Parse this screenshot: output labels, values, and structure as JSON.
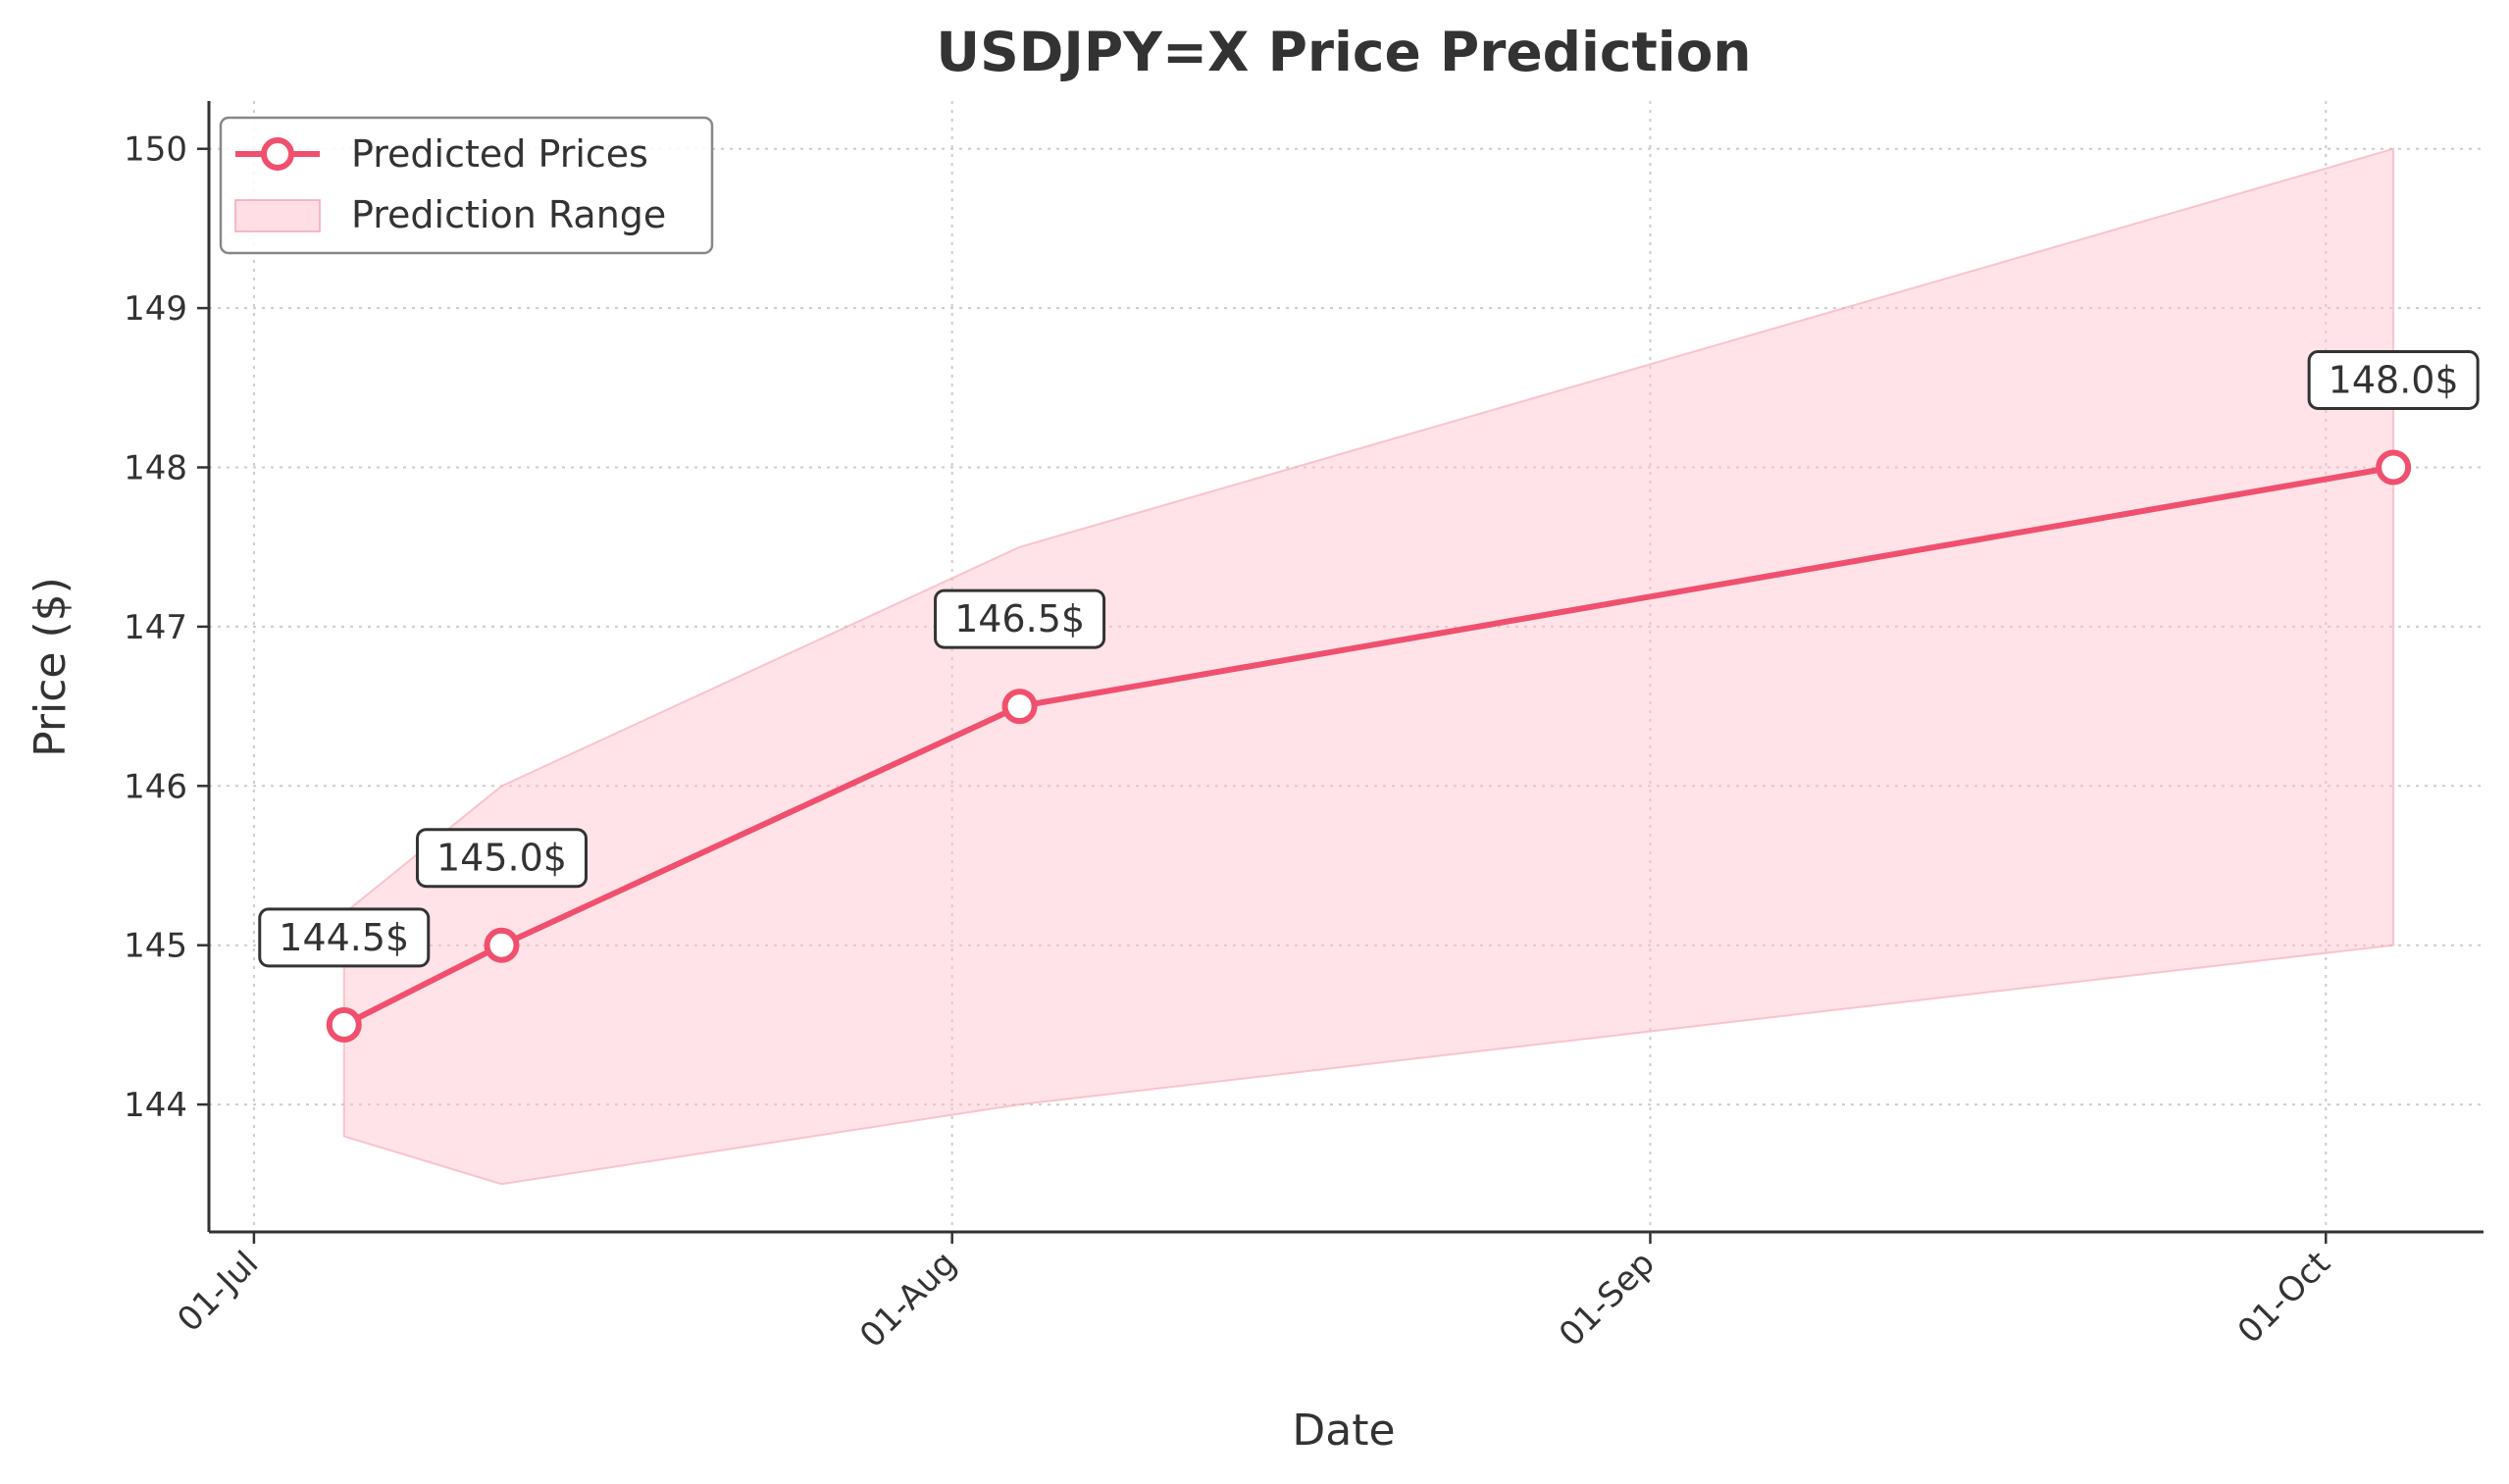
{
  "chart_data": {
    "type": "line",
    "title": "USDJPY=X Price Prediction",
    "xlabel": "Date",
    "ylabel": "Price ($)",
    "x_ticks": [
      "01-Jul",
      "01-Aug",
      "01-Sep",
      "01-Oct"
    ],
    "x_tick_dates": [
      "2024-07-01",
      "2024-08-01",
      "2024-09-01",
      "2024-10-01"
    ],
    "xlim": [
      "2024-06-29",
      "2024-10-08"
    ],
    "y_ticks": [
      144,
      145,
      146,
      147,
      148,
      149,
      150
    ],
    "ylim": [
      143.2,
      150.3
    ],
    "grid": true,
    "legend_position": "top-left",
    "series": [
      {
        "name": "Predicted Prices",
        "kind": "line",
        "color": "#f0506e",
        "points": [
          {
            "date": "2024-07-05",
            "value": 144.5,
            "label": "144.5$"
          },
          {
            "date": "2024-07-12",
            "value": 145.0,
            "label": "145.0$"
          },
          {
            "date": "2024-08-04",
            "value": 146.5,
            "label": "146.5$"
          },
          {
            "date": "2024-10-04",
            "value": 148.0,
            "label": "148.0$"
          }
        ]
      },
      {
        "name": "Prediction Range",
        "kind": "band",
        "color": "#ffc0cb",
        "points": [
          {
            "date": "2024-07-05",
            "low": 143.8,
            "high": 145.2
          },
          {
            "date": "2024-07-12",
            "low": 143.5,
            "high": 146.0
          },
          {
            "date": "2024-08-04",
            "low": 144.0,
            "high": 147.5
          },
          {
            "date": "2024-10-04",
            "low": 145.0,
            "high": 150.0
          }
        ]
      }
    ]
  }
}
